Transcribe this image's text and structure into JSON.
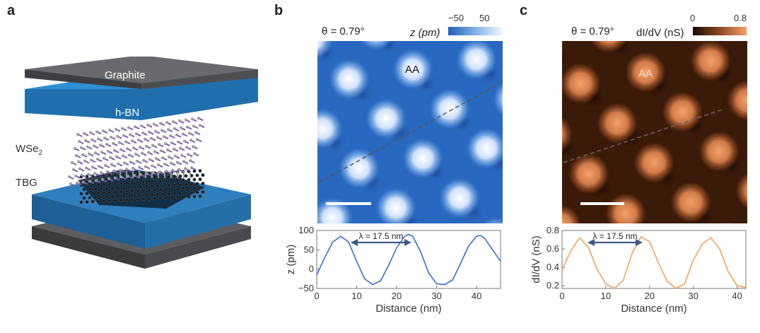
{
  "panels": {
    "a": {
      "label": "a",
      "layers": {
        "graphite": "Graphite",
        "hbn": "h-BN",
        "wse2": "WSe",
        "wse2_sub": "2",
        "tbg": "TBG"
      }
    },
    "b": {
      "label": "b",
      "theta": "θ = 0.79°",
      "colorbar": {
        "label": "z (pm)",
        "min": "−50",
        "max": "50",
        "color_low": "#1f5fb8",
        "color_high": "#f2f6ff"
      },
      "map_annotation": "AA",
      "plot": {
        "xlabel": "Distance (nm)",
        "ylabel": "z (pm)",
        "xticks": [
          "0",
          "10",
          "20",
          "30",
          "40"
        ],
        "yticks": [
          "100",
          "50",
          "0",
          "−50"
        ],
        "annotation": "λ = 17.5 nm"
      }
    },
    "c": {
      "label": "c",
      "theta": "θ = 0.79°",
      "colorbar": {
        "label": "dI/dV (nS)",
        "min": "0",
        "max": "0.8",
        "color_low": "#2a1206",
        "color_high": "#f6a06a"
      },
      "map_annotation": "AA",
      "plot": {
        "xlabel": "Distance (nm)",
        "ylabel": "dI/dV (nS)",
        "xticks": [
          "0",
          "10",
          "20",
          "30",
          "40"
        ],
        "yticks": [
          "0.8",
          "0.6",
          "0.4",
          "0.2"
        ],
        "annotation": "λ = 17.5 nm"
      }
    }
  },
  "chart_data": [
    {
      "type": "line",
      "xlabel": "Distance (nm)",
      "ylabel": "z (pm)",
      "xlim": [
        0,
        46
      ],
      "ylim": [
        -50,
        100
      ],
      "line_color": "#3a6fc4",
      "series": [
        {
          "x": [
            0,
            2,
            4,
            6,
            8,
            10,
            12,
            14,
            16,
            18,
            20,
            22,
            23,
            24,
            26,
            28,
            30,
            32,
            34,
            36,
            38,
            40,
            41,
            42,
            44,
            46
          ],
          "values": [
            -15,
            30,
            70,
            85,
            70,
            20,
            -25,
            -40,
            -30,
            10,
            55,
            85,
            90,
            85,
            45,
            -10,
            -38,
            -40,
            -28,
            15,
            60,
            85,
            87,
            80,
            50,
            20
          ]
        }
      ]
    },
    {
      "type": "line",
      "xlabel": "Distance (nm)",
      "ylabel": "dI/dV (nS)",
      "xlim": [
        0,
        42
      ],
      "ylim": [
        0.17,
        0.8
      ],
      "line_color": "#f0a35a",
      "series": [
        {
          "x": [
            0,
            2,
            4,
            6,
            8,
            10,
            12,
            14,
            16,
            18,
            20,
            22,
            24,
            26,
            28,
            30,
            32,
            34,
            36,
            38,
            40,
            42
          ],
          "values": [
            0.37,
            0.58,
            0.72,
            0.62,
            0.38,
            0.22,
            0.17,
            0.26,
            0.55,
            0.73,
            0.68,
            0.45,
            0.25,
            0.17,
            0.22,
            0.48,
            0.65,
            0.72,
            0.6,
            0.35,
            0.2,
            0.18
          ]
        }
      ]
    }
  ]
}
